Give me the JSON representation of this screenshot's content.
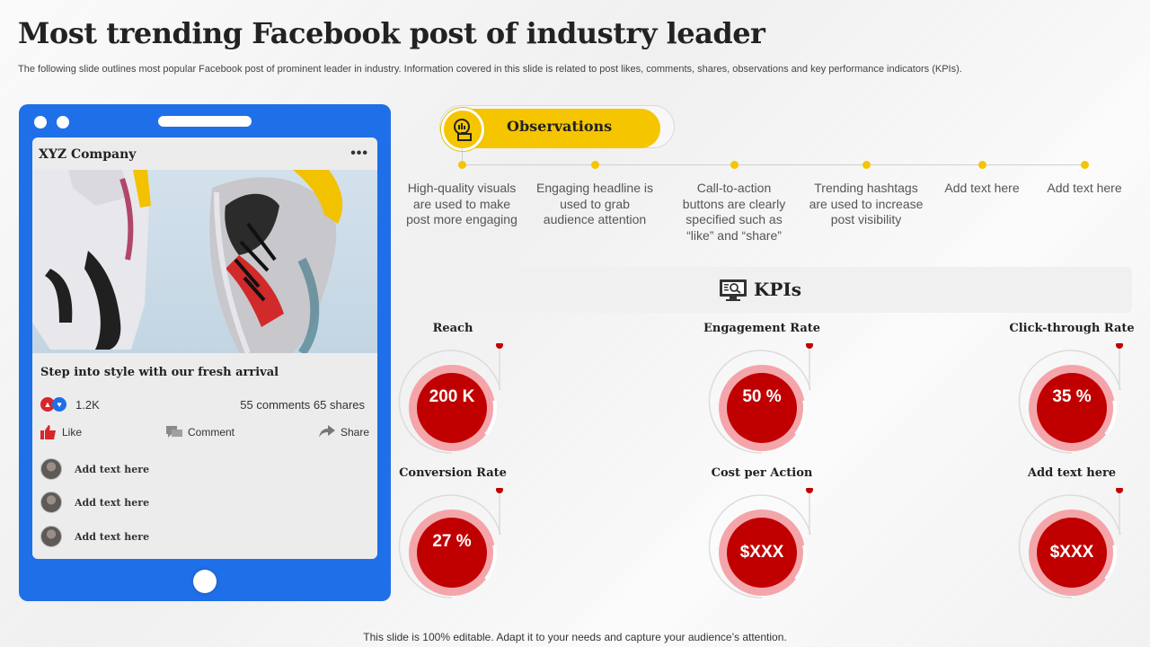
{
  "page": {
    "title": "Most trending Facebook post of industry leader",
    "subtitle": "The following slide outlines most popular Facebook post of prominent leader in industry. Information covered in this slide is related to post likes, comments, shares, observations and key performance indicators (KPIs).",
    "footer": "This slide is 100% editable. Adapt it to your needs and capture your audience’s attention."
  },
  "post": {
    "company": "XYZ Company",
    "more_icon": "•••",
    "caption": "Step into style with our fresh arrival",
    "reaction_count": "1.2K",
    "stats": "55 comments 65 shares",
    "actions": {
      "like": "Like",
      "comment": "Comment",
      "share": "Share"
    },
    "comments": [
      "Add text here",
      "Add text here",
      "Add text here"
    ]
  },
  "observations": {
    "title": "Observations",
    "items": [
      "High-quality visuals are used to make post more engaging",
      "Engaging headline is used to grab audience attention",
      "Call-to-action buttons are clearly specified such as “like” and “share”",
      "Trending hashtags are used to increase post visibility",
      "Add text here",
      "Add text here"
    ]
  },
  "kpis": {
    "title": "KPIs",
    "items": [
      {
        "label": "Reach",
        "value": "200 K"
      },
      {
        "label": "Engagement Rate",
        "value": "50 %"
      },
      {
        "label": "Click-through Rate",
        "value": "35 %"
      },
      {
        "label": "Conversion Rate",
        "value": "27 %"
      },
      {
        "label": "Cost per Action",
        "value": "$XXX"
      },
      {
        "label": "Add text here",
        "value": "$XXX"
      }
    ]
  },
  "colors": {
    "phone_blue": "#1f6fe8",
    "accent_yellow": "#f5c500",
    "kpi_red": "#c00000",
    "kpi_pink": "#f4a5aa"
  }
}
